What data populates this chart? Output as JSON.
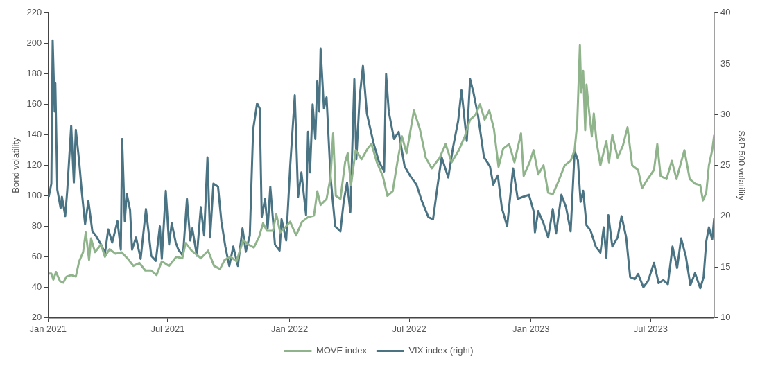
{
  "chart_data": {
    "type": "line",
    "ylabel": "Bond volatility",
    "y2label": "S&P 500 volatility",
    "xlim": [
      "2021-01-01",
      "2023-10-05"
    ],
    "xticks": [
      {
        "value": "2021-01",
        "label": "Jan 2021"
      },
      {
        "value": "2021-07",
        "label": "Jul 2021"
      },
      {
        "value": "2022-01",
        "label": "Jan 2022"
      },
      {
        "value": "2022-07",
        "label": "Jul 2022"
      },
      {
        "value": "2023-01",
        "label": "Jan 2023"
      },
      {
        "value": "2023-07",
        "label": "Jul 2023"
      }
    ],
    "ylim": [
      20,
      220
    ],
    "yticks": [
      20,
      40,
      60,
      80,
      100,
      120,
      140,
      160,
      180,
      200,
      220
    ],
    "y2lim": [
      10,
      40
    ],
    "y2ticks": [
      10,
      15,
      20,
      25,
      30,
      35,
      40
    ],
    "grid": false,
    "legend": "bottom",
    "line_style": "solid",
    "series": [
      {
        "name": "MOVE index",
        "color": "#8fb38a",
        "x": [
          "2021-01-02",
          "2021-01-06",
          "2021-01-09",
          "2021-01-13",
          "2021-01-19",
          "2021-01-24",
          "2021-01-29",
          "2021-02-05",
          "2021-02-12",
          "2021-02-17",
          "2021-02-23",
          "2021-02-27",
          "2021-03-04",
          "2021-03-07",
          "2021-03-13",
          "2021-03-22",
          "2021-03-28",
          "2021-04-04",
          "2021-04-13",
          "2021-04-22",
          "2021-05-01",
          "2021-05-10",
          "2021-05-19",
          "2021-05-28",
          "2021-06-06",
          "2021-06-14",
          "2021-06-22",
          "2021-07-03",
          "2021-07-14",
          "2021-07-23",
          "2021-07-28",
          "2021-08-06",
          "2021-08-15",
          "2021-08-20",
          "2021-08-31",
          "2021-09-09",
          "2021-09-18",
          "2021-09-25",
          "2021-10-04",
          "2021-10-13",
          "2021-10-23",
          "2021-10-31",
          "2021-11-08",
          "2021-11-16",
          "2021-11-22",
          "2021-11-28",
          "2021-12-07",
          "2021-12-12",
          "2021-12-18",
          "2021-12-25",
          "2022-01-02",
          "2022-01-11",
          "2022-01-20",
          "2022-01-29",
          "2022-02-07",
          "2022-02-12",
          "2022-02-17",
          "2022-02-26",
          "2022-03-04",
          "2022-03-08",
          "2022-03-12",
          "2022-03-19",
          "2022-03-26",
          "2022-03-30",
          "2022-04-04",
          "2022-04-11",
          "2022-04-20",
          "2022-04-29",
          "2022-05-05",
          "2022-05-13",
          "2022-05-22",
          "2022-05-29",
          "2022-06-06",
          "2022-06-13",
          "2022-06-20",
          "2022-06-27",
          "2022-07-08",
          "2022-07-17",
          "2022-07-26",
          "2022-08-04",
          "2022-08-16",
          "2022-08-25",
          "2022-09-03",
          "2022-09-14",
          "2022-09-23",
          "2022-10-01",
          "2022-10-09",
          "2022-10-16",
          "2022-10-23",
          "2022-10-30",
          "2022-11-06",
          "2022-11-13",
          "2022-11-20",
          "2022-11-29",
          "2022-12-07",
          "2022-12-17",
          "2022-12-21",
          "2022-12-30",
          "2023-01-05",
          "2023-01-12",
          "2023-01-20",
          "2023-01-27",
          "2023-02-03",
          "2023-02-12",
          "2023-02-21",
          "2023-03-02",
          "2023-03-08",
          "2023-03-12",
          "2023-03-16",
          "2023-03-18",
          "2023-03-21",
          "2023-03-24",
          "2023-03-26",
          "2023-03-29",
          "2023-04-03",
          "2023-04-06",
          "2023-04-10",
          "2023-04-16",
          "2023-04-25",
          "2023-04-29",
          "2023-05-04",
          "2023-05-12",
          "2023-05-20",
          "2023-05-27",
          "2023-06-03",
          "2023-06-12",
          "2023-06-18",
          "2023-06-25",
          "2023-07-06",
          "2023-07-11",
          "2023-07-16",
          "2023-07-25",
          "2023-08-02",
          "2023-08-09",
          "2023-08-16",
          "2023-08-21",
          "2023-08-29",
          "2023-09-06",
          "2023-09-14",
          "2023-09-18",
          "2023-09-23",
          "2023-09-27",
          "2023-10-02",
          "2023-10-05"
        ],
        "values": [
          49,
          49,
          45,
          50,
          44,
          43,
          47,
          48,
          47,
          57,
          63,
          76,
          58,
          72,
          63,
          68,
          60,
          65,
          62,
          63,
          59,
          54,
          56,
          51,
          51,
          48,
          57,
          54,
          60,
          59,
          69,
          64,
          61,
          59,
          64,
          54,
          52,
          58,
          60,
          57,
          71,
          68,
          66,
          73,
          82,
          77,
          77,
          88,
          76,
          79,
          83,
          74,
          83,
          86,
          87,
          103,
          94,
          98,
          112,
          141,
          100,
          98,
          122,
          128,
          107,
          130,
          124,
          131,
          134,
          122,
          113,
          100,
          103,
          122,
          139,
          128,
          156,
          144,
          125,
          118,
          125,
          134,
          122,
          130,
          139,
          150,
          153,
          160,
          150,
          156,
          144,
          119,
          131,
          134,
          122,
          141,
          113,
          122,
          130,
          114,
          120,
          102,
          101,
          110,
          120,
          123,
          130,
          148,
          199,
          168,
          182,
          143,
          173,
          159,
          139,
          154,
          136,
          120,
          136,
          122,
          140,
          125,
          133,
          145,
          120,
          117,
          105,
          110,
          117,
          134,
          113,
          111,
          123,
          111,
          122,
          130,
          111,
          108,
          107,
          97,
          102,
          120,
          130,
          140
        ]
      },
      {
        "name": "VIX index (right)",
        "color": "#4a7384",
        "axis": "y2",
        "x": [
          "2021-01-02",
          "2021-01-06",
          "2021-01-08",
          "2021-01-11",
          "2021-01-12",
          "2021-01-15",
          "2021-01-20",
          "2021-01-22",
          "2021-01-27",
          "2021-01-30",
          "2021-02-05",
          "2021-02-09",
          "2021-02-12",
          "2021-02-17",
          "2021-02-21",
          "2021-02-26",
          "2021-03-03",
          "2021-03-09",
          "2021-03-14",
          "2021-03-23",
          "2021-03-28",
          "2021-04-02",
          "2021-04-08",
          "2021-04-16",
          "2021-04-21",
          "2021-04-23",
          "2021-04-27",
          "2021-04-30",
          "2021-05-05",
          "2021-05-08",
          "2021-05-14",
          "2021-05-21",
          "2021-05-29",
          "2021-06-06",
          "2021-06-13",
          "2021-06-19",
          "2021-06-22",
          "2021-06-28",
          "2021-07-03",
          "2021-07-07",
          "2021-07-13",
          "2021-07-17",
          "2021-07-24",
          "2021-07-30",
          "2021-08-04",
          "2021-08-07",
          "2021-08-14",
          "2021-08-20",
          "2021-08-25",
          "2021-08-30",
          "2021-09-03",
          "2021-09-08",
          "2021-09-15",
          "2021-09-20",
          "2021-09-26",
          "2021-10-02",
          "2021-10-08",
          "2021-10-15",
          "2021-10-22",
          "2021-10-27",
          "2021-11-02",
          "2021-11-07",
          "2021-11-13",
          "2021-11-17",
          "2021-11-20",
          "2021-11-25",
          "2021-11-29",
          "2021-12-03",
          "2021-12-10",
          "2021-12-17",
          "2021-12-20",
          "2021-12-27",
          "2022-01-02",
          "2022-01-09",
          "2022-01-14",
          "2022-01-19",
          "2022-01-26",
          "2022-01-29",
          "2022-02-01",
          "2022-02-05",
          "2022-02-09",
          "2022-02-12",
          "2022-02-15",
          "2022-02-17",
          "2022-02-22",
          "2022-02-26",
          "2022-03-04",
          "2022-03-11",
          "2022-03-19",
          "2022-03-24",
          "2022-03-29",
          "2022-04-03",
          "2022-04-09",
          "2022-04-12",
          "2022-04-17",
          "2022-04-22",
          "2022-04-28",
          "2022-05-08",
          "2022-05-16",
          "2022-05-24",
          "2022-05-27",
          "2022-05-31",
          "2022-06-08",
          "2022-06-15",
          "2022-06-24",
          "2022-07-03",
          "2022-07-12",
          "2022-07-20",
          "2022-07-30",
          "2022-08-06",
          "2022-08-13",
          "2022-08-19",
          "2022-08-29",
          "2022-09-05",
          "2022-09-13",
          "2022-09-18",
          "2022-09-26",
          "2022-10-01",
          "2022-10-06",
          "2022-10-13",
          "2022-10-22",
          "2022-10-31",
          "2022-11-05",
          "2022-11-12",
          "2022-11-18",
          "2022-11-26",
          "2022-12-05",
          "2022-12-12",
          "2022-12-20",
          "2022-12-29",
          "2023-01-05",
          "2023-01-07",
          "2023-01-12",
          "2023-01-20",
          "2023-01-27",
          "2023-02-03",
          "2023-02-08",
          "2023-02-16",
          "2023-02-23",
          "2023-03-02",
          "2023-03-08",
          "2023-03-13",
          "2023-03-17",
          "2023-03-21",
          "2023-03-26",
          "2023-04-01",
          "2023-04-09",
          "2023-04-16",
          "2023-04-21",
          "2023-04-25",
          "2023-04-28",
          "2023-05-04",
          "2023-05-12",
          "2023-05-18",
          "2023-05-25",
          "2023-05-31",
          "2023-06-07",
          "2023-06-12",
          "2023-06-20",
          "2023-06-27",
          "2023-07-06",
          "2023-07-13",
          "2023-07-20",
          "2023-07-27",
          "2023-08-03",
          "2023-08-10",
          "2023-08-16",
          "2023-08-23",
          "2023-08-30",
          "2023-09-06",
          "2023-09-14",
          "2023-09-19",
          "2023-09-23",
          "2023-09-27",
          "2023-10-02",
          "2023-10-05"
        ],
        "values": [
          21.9,
          23.2,
          37.3,
          30.3,
          33.1,
          22.6,
          20.8,
          21.9,
          20.0,
          22.5,
          28.9,
          23.3,
          28.5,
          25.4,
          22.4,
          19.2,
          21.5,
          18.5,
          18.1,
          17.1,
          16.3,
          18.7,
          17.4,
          19.5,
          16.7,
          27.6,
          19.5,
          22.2,
          20.6,
          16.7,
          17.9,
          15.8,
          20.7,
          16.1,
          15.6,
          19.0,
          15.8,
          22.5,
          17.2,
          19.3,
          17.4,
          16.7,
          16.1,
          21.7,
          17.6,
          18.8,
          16.1,
          20.9,
          18.1,
          25.8,
          17.9,
          23.2,
          22.9,
          19.5,
          17.0,
          15.1,
          17.0,
          15.1,
          18.8,
          16.5,
          18.1,
          28.5,
          31.1,
          30.6,
          19.9,
          21.7,
          18.8,
          22.9,
          17.2,
          16.6,
          19.7,
          17.6,
          24.9,
          31.9,
          21.9,
          24.3,
          20.1,
          28.3,
          24.3,
          31.0,
          27.6,
          33.3,
          30.3,
          36.5,
          30.6,
          31.7,
          23.9,
          19.0,
          18.5,
          21.5,
          23.3,
          20.4,
          33.5,
          25.6,
          31.7,
          34.8,
          30.1,
          27.2,
          25.4,
          24.4,
          34.0,
          30.3,
          27.6,
          28.3,
          24.9,
          23.9,
          23.1,
          21.5,
          19.9,
          19.7,
          23.1,
          25.8,
          23.8,
          26.7,
          29.4,
          32.4,
          27.4,
          33.5,
          32.2,
          29.9,
          25.8,
          24.9,
          23.1,
          24.0,
          20.8,
          19.0,
          24.7,
          21.7,
          21.9,
          22.1,
          20.5,
          18.4,
          20.5,
          19.3,
          17.9,
          20.7,
          18.3,
          22.1,
          20.9,
          18.5,
          26.4,
          25.5,
          21.4,
          22.5,
          19.1,
          18.6,
          17.0,
          16.4,
          18.9,
          15.9,
          20.1,
          17.0,
          17.9,
          20.0,
          17.9,
          14.0,
          13.8,
          14.3,
          13.0,
          13.6,
          15.4,
          13.4,
          13.7,
          13.3,
          17.0,
          14.9,
          17.8,
          16.1,
          13.2,
          14.4,
          12.9,
          14.0,
          17.5,
          18.9,
          17.7,
          19.8
        ]
      }
    ]
  }
}
